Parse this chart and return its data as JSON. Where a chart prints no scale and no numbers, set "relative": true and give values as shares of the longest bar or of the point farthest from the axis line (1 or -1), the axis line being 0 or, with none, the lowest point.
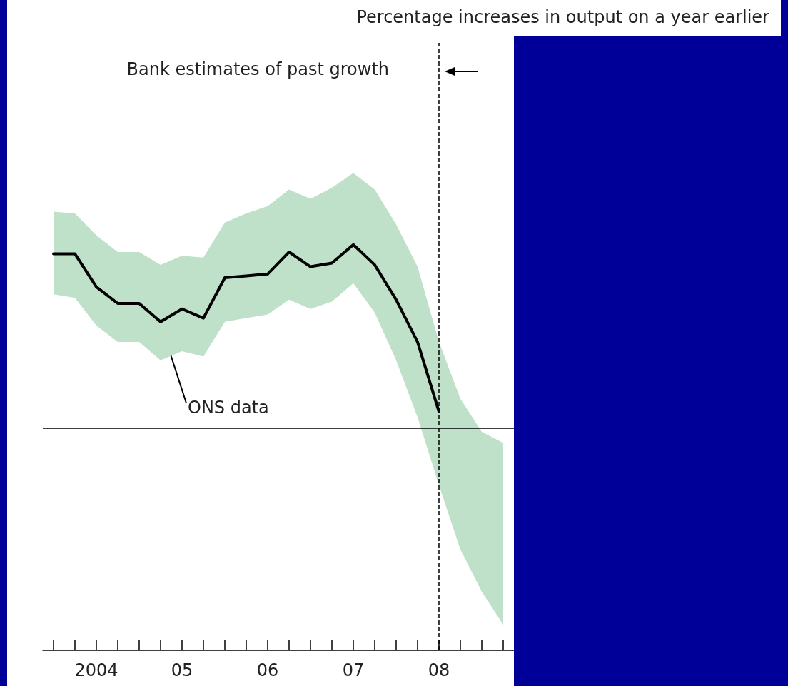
{
  "chart_data": {
    "type": "line",
    "title": "Percentage increases in output on a year earlier",
    "relative": true,
    "categories": [
      null,
      null,
      "2004",
      null,
      null,
      null,
      "05",
      null,
      null,
      null,
      "06",
      null,
      null,
      null,
      "07",
      null,
      null,
      null,
      "08",
      null,
      null,
      null
    ],
    "series": [
      {
        "color": "#000000",
        "values": [
          0.95,
          0.95,
          0.77,
          0.68,
          0.68,
          0.58,
          0.65,
          0.6,
          0.82,
          0.83,
          0.84,
          0.96,
          0.88,
          0.9,
          1.0,
          0.89,
          0.7,
          0.47,
          0.09,
          null,
          null,
          null
        ],
        "upper": [
          1.18,
          1.17,
          1.05,
          0.96,
          0.96,
          0.89,
          0.94,
          0.93,
          1.12,
          1.17,
          1.21,
          1.3,
          1.25,
          1.31,
          1.39,
          1.3,
          1.11,
          0.88,
          0.47,
          0.16,
          -0.02,
          -0.08
        ],
        "lower": [
          0.73,
          0.71,
          0.56,
          0.47,
          0.47,
          0.37,
          0.42,
          0.39,
          0.58,
          0.6,
          0.62,
          0.7,
          0.65,
          0.69,
          0.79,
          0.63,
          0.37,
          0.06,
          -0.31,
          -0.66,
          -0.89,
          -1.07
        ]
      }
    ],
    "ref_lines": [
      {
        "axis": "y",
        "value": 0,
        "line_style": "solid",
        "color": "#000000"
      },
      {
        "axis": "x",
        "value": "08",
        "line_style": "dashed",
        "color": "#000000"
      }
    ],
    "annotations": [
      "Bank estimates of past growth",
      "ONS data"
    ],
    "grid": false,
    "marker": "none",
    "line_style": "solid"
  }
}
